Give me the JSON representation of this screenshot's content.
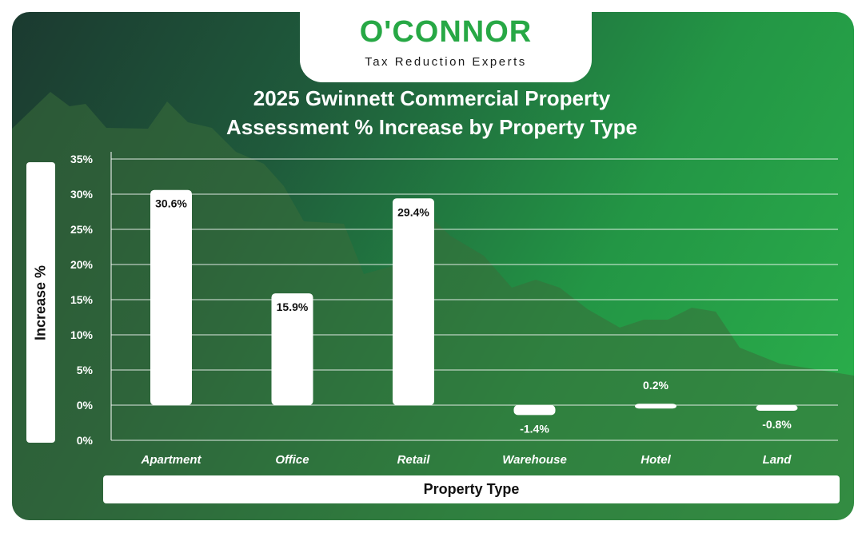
{
  "brand": {
    "name": "O'CONNOR",
    "tagline": "Tax Reduction Experts",
    "color": "#27a845"
  },
  "chart_data": {
    "type": "bar",
    "title_line1": "2025 Gwinnett Commercial Property",
    "title_line2": "Assessment % Increase by Property Type",
    "xlabel": "Property Type",
    "ylabel": "Increase %",
    "categories": [
      "Apartment",
      "Office",
      "Retail",
      "Warehouse",
      "Hotel",
      "Land"
    ],
    "values": [
      30.6,
      15.9,
      29.4,
      -1.4,
      0.2,
      -0.8
    ],
    "value_labels": [
      "30.6%",
      "15.9%",
      "29.4%",
      "-1.4%",
      "0.2%",
      "-0.8%"
    ],
    "y_ticks": [
      "35%",
      "30%",
      "25%",
      "20%",
      "15%",
      "10%",
      "5%",
      "0%",
      "0%"
    ],
    "ylim": [
      -5,
      35
    ],
    "grid": true,
    "bar_color": "#ffffff"
  }
}
